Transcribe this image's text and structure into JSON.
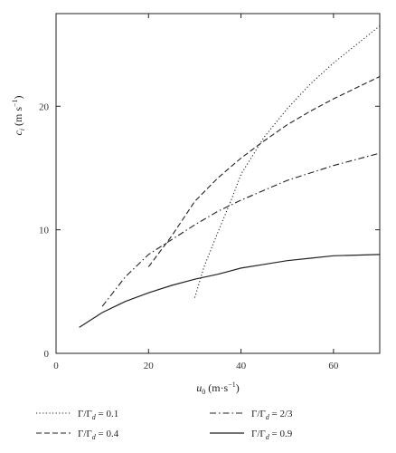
{
  "chart_data": {
    "type": "line",
    "xlabel": {
      "symbol": "u",
      "sub": "0",
      "unit_prefix": " (m·s",
      "unit_exp": "−1",
      "unit_suffix": ")"
    },
    "ylabel": {
      "symbol": "c",
      "sub": "i",
      "unit_prefix": " (m s",
      "unit_exp": "−1",
      "unit_suffix": ")"
    },
    "xlim": [
      0,
      70
    ],
    "ylim": [
      0,
      27.5
    ],
    "xticks": [
      0,
      20,
      40,
      60
    ],
    "yticks": [
      0,
      10,
      20
    ],
    "grid": false,
    "legend_position": "bottom",
    "series": [
      {
        "name_prefix": "Γ/Γ",
        "name_sub": "d",
        "name_value": " = 0.1",
        "style": "dotted",
        "x": [
          30,
          32,
          35,
          38,
          40,
          45,
          50,
          55,
          60,
          65,
          70
        ],
        "y": [
          4.5,
          7.0,
          9.8,
          12.5,
          14.5,
          17.5,
          19.8,
          21.8,
          23.5,
          25.0,
          26.5
        ]
      },
      {
        "name_prefix": "Γ/Γ",
        "name_sub": "d",
        "name_value": " = 0.4",
        "style": "dashed",
        "x": [
          20,
          25,
          30,
          35,
          40,
          45,
          50,
          55,
          60,
          65,
          70
        ],
        "y": [
          7.0,
          9.5,
          12.3,
          14.2,
          15.8,
          17.2,
          18.5,
          19.6,
          20.6,
          21.5,
          22.4
        ]
      },
      {
        "name_prefix": "Γ/Γ",
        "name_sub": "d",
        "name_value": " = 2/3",
        "style": "dashdot",
        "x": [
          10,
          15,
          20,
          25,
          30,
          35,
          40,
          45,
          50,
          55,
          60,
          65,
          70
        ],
        "y": [
          3.8,
          6.2,
          8.0,
          9.2,
          10.4,
          11.5,
          12.4,
          13.2,
          14.0,
          14.6,
          15.2,
          15.7,
          16.2
        ]
      },
      {
        "name_prefix": "Γ/Γ",
        "name_sub": "d",
        "name_value": " = 0.9",
        "style": "solid",
        "x": [
          5,
          10,
          15,
          20,
          25,
          30,
          35,
          40,
          45,
          50,
          55,
          60,
          65,
          70
        ],
        "y": [
          2.1,
          3.3,
          4.2,
          4.9,
          5.5,
          6.0,
          6.4,
          6.9,
          7.2,
          7.5,
          7.7,
          7.9,
          7.95,
          8.0
        ]
      }
    ]
  }
}
